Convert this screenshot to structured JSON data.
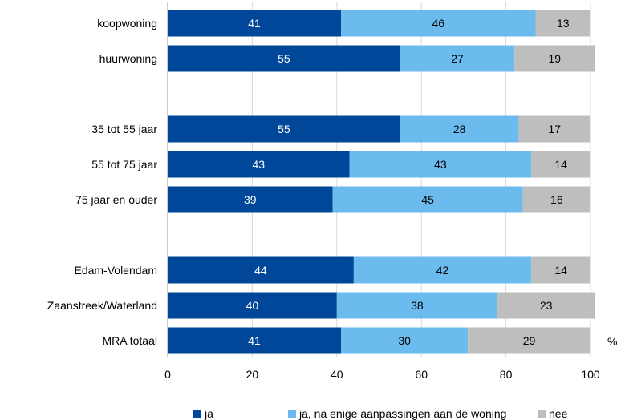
{
  "chart_data": {
    "type": "bar",
    "orientation": "horizontal",
    "stacked": true,
    "categories": [
      "koopwoning",
      "huurwoning",
      "",
      "35 tot 55 jaar",
      "55 tot 75 jaar",
      "75 jaar en ouder",
      "",
      "Edam-Volendam",
      "Zaanstreek/Waterland",
      "MRA totaal"
    ],
    "series": [
      {
        "name": "ja",
        "color": "#00479A",
        "label_color": "#ffffff",
        "values": [
          41,
          55,
          null,
          55,
          43,
          39,
          null,
          44,
          40,
          41
        ]
      },
      {
        "name": "ja, na enige aanpassingen aan de woning",
        "color": "#6CBBEF",
        "label_color": "#000000",
        "values": [
          46,
          27,
          null,
          28,
          43,
          45,
          null,
          42,
          38,
          30
        ]
      },
      {
        "name": "nee",
        "color": "#BEBEBE",
        "label_color": "#000000",
        "values": [
          13,
          19,
          null,
          17,
          14,
          16,
          null,
          14,
          23,
          29
        ]
      }
    ],
    "xlim": [
      0,
      100
    ],
    "xticks": [
      0,
      20,
      40,
      60,
      80,
      100
    ],
    "unit_label": "%",
    "grid": true,
    "legend_position": "bottom"
  }
}
